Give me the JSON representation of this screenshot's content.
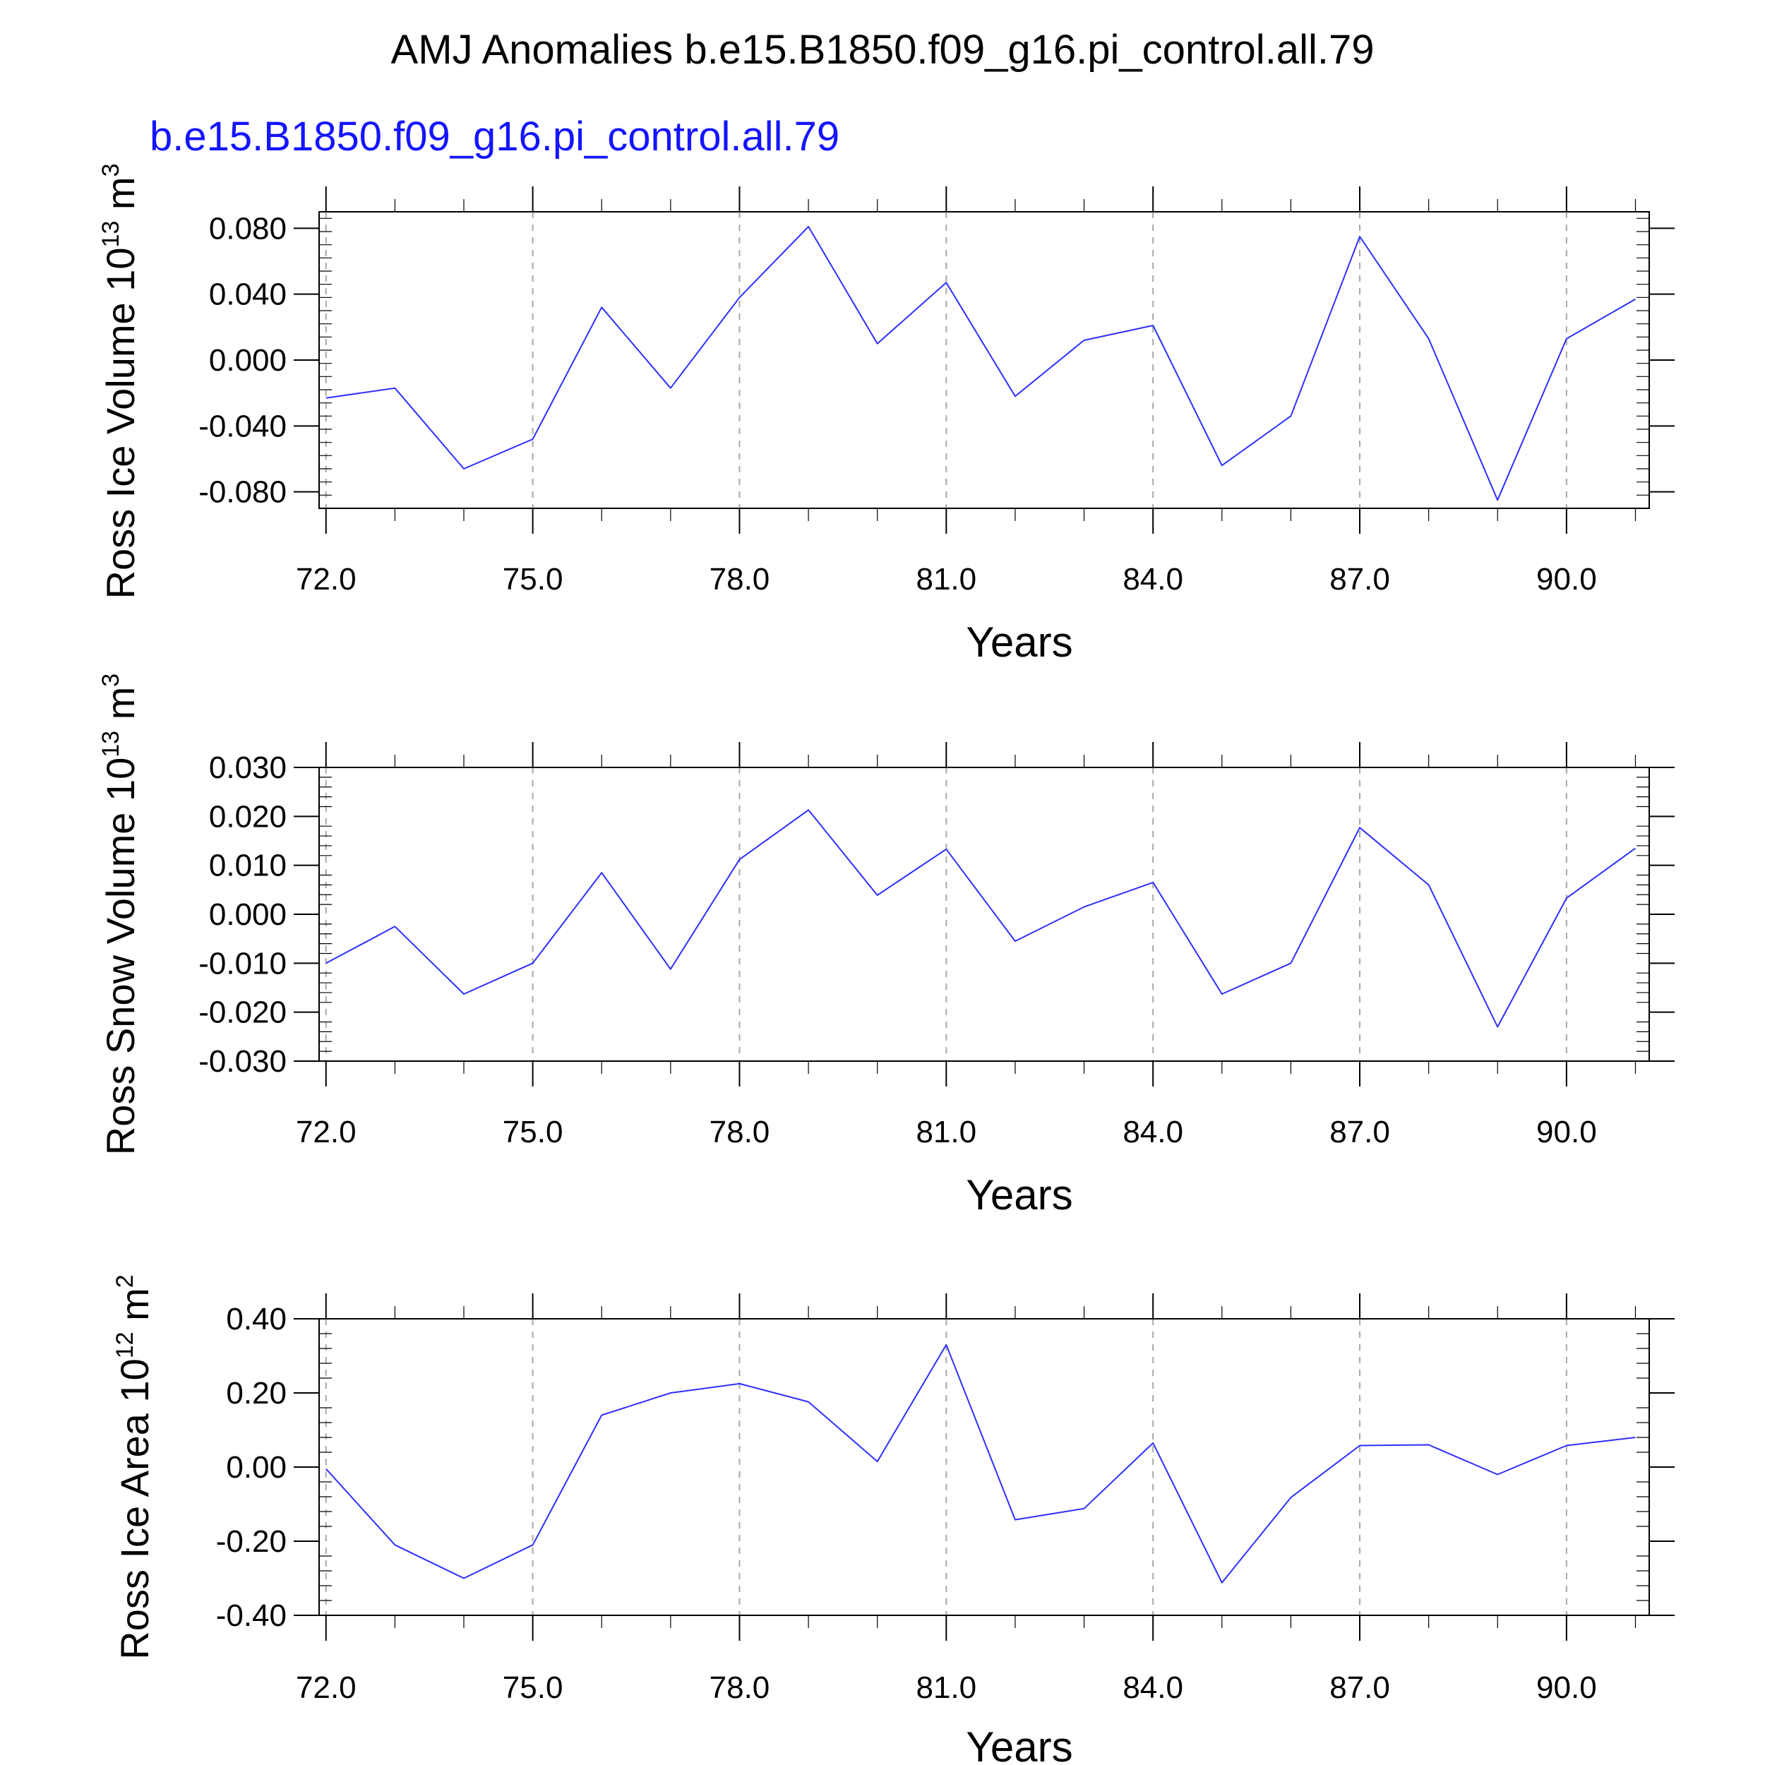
{
  "title": "AMJ Anomalies b.e15.B1850.f09_g16.pi_control.all.79",
  "subtitle": "b.e15.B1850.f09_g16.pi_control.all.79",
  "colors": {
    "line": "#2f2fff",
    "subtitle": "#1414ff",
    "grid": "#a8a8a8",
    "axis": "#000000"
  },
  "chart_data": [
    {
      "type": "line",
      "xlabel": "Years",
      "ylabel": {
        "text": "Ross Ice Volume 10",
        "exp": "13",
        "unit": " m",
        "unit_exp": "3"
      },
      "xlim": [
        71.9,
        91.2
      ],
      "ylim": [
        -0.09,
        0.09
      ],
      "xticks": [
        72.0,
        75.0,
        78.0,
        81.0,
        84.0,
        87.0,
        90.0
      ],
      "xtick_labels": [
        "72.0",
        "75.0",
        "78.0",
        "81.0",
        "84.0",
        "87.0",
        "90.0"
      ],
      "yticks": [
        -0.08,
        -0.04,
        0.0,
        0.04,
        0.08
      ],
      "ytick_labels": [
        "-0.080",
        "-0.040",
        "0.000",
        "0.040",
        "0.080"
      ],
      "grid": "vertical dashed at x ticks",
      "series": [
        {
          "x": [
            72,
            73,
            74,
            75,
            76,
            77,
            78,
            79,
            80,
            81,
            82,
            83,
            84,
            85,
            86,
            87,
            88,
            89,
            90,
            91
          ],
          "y": [
            -0.023,
            -0.017,
            -0.066,
            -0.048,
            0.032,
            -0.017,
            0.038,
            0.081,
            0.01,
            0.047,
            -0.022,
            0.012,
            0.021,
            -0.064,
            -0.034,
            0.075,
            0.013,
            -0.085,
            0.013,
            0.037
          ]
        }
      ]
    },
    {
      "type": "line",
      "xlabel": "Years",
      "ylabel": {
        "text": "Ross Snow Volume 10",
        "exp": "13",
        "unit": " m",
        "unit_exp": "3"
      },
      "xlim": [
        71.9,
        91.2
      ],
      "ylim": [
        -0.03,
        0.03
      ],
      "xticks": [
        72.0,
        75.0,
        78.0,
        81.0,
        84.0,
        87.0,
        90.0
      ],
      "xtick_labels": [
        "72.0",
        "75.0",
        "78.0",
        "81.0",
        "84.0",
        "87.0",
        "90.0"
      ],
      "yticks": [
        -0.03,
        -0.02,
        -0.01,
        0.0,
        0.01,
        0.02,
        0.03
      ],
      "ytick_labels": [
        "-0.030",
        "-0.020",
        "-0.010",
        "0.000",
        "0.010",
        "0.020",
        "0.030"
      ],
      "grid": "vertical dashed at x ticks",
      "series": [
        {
          "x": [
            72,
            73,
            74,
            75,
            76,
            77,
            78,
            79,
            80,
            81,
            82,
            83,
            84,
            85,
            86,
            87,
            88,
            89,
            90,
            91
          ],
          "y": [
            -0.01,
            -0.0025,
            -0.0163,
            -0.01,
            0.0085,
            -0.0112,
            0.0112,
            0.0213,
            0.0039,
            0.0133,
            -0.0055,
            0.0015,
            0.0065,
            -0.0163,
            -0.01,
            0.0177,
            0.006,
            -0.023,
            0.0033,
            0.0135
          ]
        }
      ]
    },
    {
      "type": "line",
      "xlabel": "Years",
      "ylabel": {
        "text": "Ross Ice Area 10",
        "exp": "12",
        "unit": " m",
        "unit_exp": "2"
      },
      "xlim": [
        71.9,
        91.2
      ],
      "ylim": [
        -0.4,
        0.4
      ],
      "xticks": [
        72.0,
        75.0,
        78.0,
        81.0,
        84.0,
        87.0,
        90.0
      ],
      "xtick_labels": [
        "72.0",
        "75.0",
        "78.0",
        "81.0",
        "84.0",
        "87.0",
        "90.0"
      ],
      "yticks": [
        -0.4,
        -0.2,
        0.0,
        0.2,
        0.4
      ],
      "ytick_labels": [
        "-0.40",
        "-0.20",
        "0.00",
        "0.20",
        "0.40"
      ],
      "grid": "vertical dashed at x ticks",
      "series": [
        {
          "x": [
            72,
            73,
            74,
            75,
            76,
            77,
            78,
            79,
            80,
            81,
            82,
            83,
            84,
            85,
            86,
            87,
            88,
            89,
            90,
            91
          ],
          "y": [
            -0.005,
            -0.21,
            -0.3,
            -0.21,
            0.14,
            0.2,
            0.225,
            0.176,
            0.015,
            0.33,
            -0.142,
            -0.112,
            0.065,
            -0.312,
            -0.082,
            0.058,
            0.06,
            -0.02,
            0.058,
            0.08
          ]
        }
      ]
    }
  ]
}
